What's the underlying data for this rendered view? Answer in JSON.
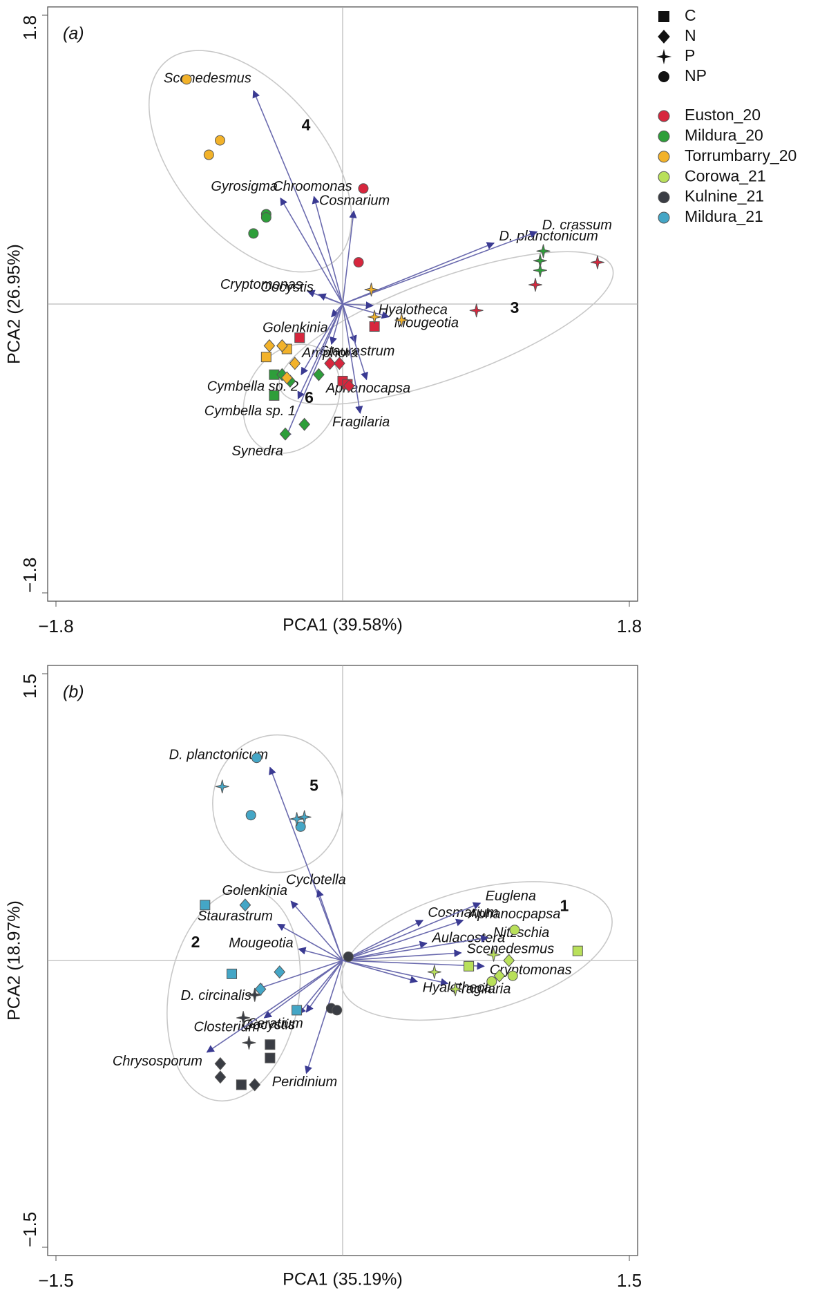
{
  "legend": {
    "markers": [
      {
        "name": "C",
        "shape": "square"
      },
      {
        "name": "N",
        "shape": "diamond"
      },
      {
        "name": "P",
        "shape": "star"
      },
      {
        "name": "NP",
        "shape": "circle"
      }
    ],
    "sites": [
      {
        "name": "Euston_20",
        "color": "#d7263d"
      },
      {
        "name": "Mildura_20",
        "color": "#2e9e3a"
      },
      {
        "name": "Torrumbarry_20",
        "color": "#f2b22a"
      },
      {
        "name": "Corowa_21",
        "color": "#b9e05a"
      },
      {
        "name": "Kulnine_21",
        "color": "#3a3d44"
      },
      {
        "name": "Mildura_21",
        "color": "#44a6c6"
      }
    ]
  },
  "chart_data": [
    {
      "type": "biplot",
      "panel": "(a)",
      "x_label": "PCA1 (39.58%)",
      "y_label": "PCA2 (26.95%)",
      "xlim": [
        -1.8,
        1.8
      ],
      "ylim": [
        -1.8,
        1.8
      ],
      "xticks": [
        {
          "value": -1.8,
          "label": "−1.8"
        },
        1.8
      ],
      "yticks": [
        {
          "value": -1.8,
          "label": "−1.8"
        },
        1.8
      ],
      "series": [
        {
          "name": "Euston_20",
          "color": "#d7263d",
          "points": [
            {
              "shape": "circle",
              "x": 0.13,
              "y": 0.72
            },
            {
              "shape": "circle",
              "x": 0.1,
              "y": 0.26
            },
            {
              "shape": "star",
              "x": 1.21,
              "y": 0.12
            },
            {
              "shape": "star",
              "x": 1.6,
              "y": 0.26
            },
            {
              "shape": "star",
              "x": 0.84,
              "y": -0.04
            },
            {
              "shape": "square",
              "x": -0.27,
              "y": -0.21
            },
            {
              "shape": "square",
              "x": 0.2,
              "y": -0.14
            },
            {
              "shape": "square",
              "x": 0,
              "y": -0.48
            },
            {
              "shape": "square",
              "x": 0.03,
              "y": -0.5
            },
            {
              "shape": "diamond",
              "x": -0.08,
              "y": -0.37
            },
            {
              "shape": "diamond",
              "x": -0.02,
              "y": -0.37
            },
            {
              "shape": "diamond",
              "x": 0.04,
              "y": -0.51
            }
          ]
        },
        {
          "name": "Mildura_20",
          "color": "#2e9e3a",
          "points": [
            {
              "shape": "circle",
              "x": -0.48,
              "y": 0.56
            },
            {
              "shape": "circle",
              "x": -0.48,
              "y": 0.54
            },
            {
              "shape": "circle",
              "x": -0.56,
              "y": 0.44
            },
            {
              "shape": "star",
              "x": 1.26,
              "y": 0.33
            },
            {
              "shape": "star",
              "x": 1.24,
              "y": 0.27
            },
            {
              "shape": "star",
              "x": 1.24,
              "y": 0.21
            },
            {
              "shape": "square",
              "x": -0.43,
              "y": -0.44
            },
            {
              "shape": "square",
              "x": -0.43,
              "y": -0.57
            },
            {
              "shape": "diamond",
              "x": -0.38,
              "y": -0.44
            },
            {
              "shape": "diamond",
              "x": -0.33,
              "y": -0.48
            },
            {
              "shape": "diamond",
              "x": -0.15,
              "y": -0.44
            },
            {
              "shape": "diamond",
              "x": -0.24,
              "y": -0.75
            },
            {
              "shape": "diamond",
              "x": -0.36,
              "y": -0.81
            }
          ]
        },
        {
          "name": "Torrumbarry_20",
          "color": "#f2b22a",
          "points": [
            {
              "shape": "circle",
              "x": -0.98,
              "y": 1.4
            },
            {
              "shape": "circle",
              "x": -0.77,
              "y": 1.02
            },
            {
              "shape": "circle",
              "x": -0.84,
              "y": 0.93
            },
            {
              "shape": "star",
              "x": 0.18,
              "y": 0.09
            },
            {
              "shape": "star",
              "x": 0.2,
              "y": -0.08
            },
            {
              "shape": "star",
              "x": 0.37,
              "y": -0.1
            },
            {
              "shape": "square",
              "x": -0.48,
              "y": -0.33
            },
            {
              "shape": "square",
              "x": -0.35,
              "y": -0.28
            },
            {
              "shape": "diamond",
              "x": -0.46,
              "y": -0.26
            },
            {
              "shape": "diamond",
              "x": -0.38,
              "y": -0.26
            },
            {
              "shape": "diamond",
              "x": -0.3,
              "y": -0.37
            },
            {
              "shape": "diamond",
              "x": -0.35,
              "y": -0.46
            }
          ]
        }
      ],
      "arrows": [
        {
          "name": "Scenedesmus",
          "x": -0.56,
          "y": 1.33
        },
        {
          "name": "Chroomonas",
          "x": -0.18,
          "y": 0.67
        },
        {
          "name": "Gyrosigma",
          "x": -0.39,
          "y": 0.66
        },
        {
          "name": "Cosmarium",
          "x": 0.07,
          "y": 0.58
        },
        {
          "name": "D. planctonicum",
          "x": 0.95,
          "y": 0.38
        },
        {
          "name": "D. crassum",
          "x": 1.22,
          "y": 0.45
        },
        {
          "name": "Cryptomonas",
          "x": -0.22,
          "y": 0.08
        },
        {
          "name": "Oocystis",
          "x": -0.15,
          "y": 0.06
        },
        {
          "name": "Hyalotheca",
          "x": 0.19,
          "y": -0.01
        },
        {
          "name": "Mougeotia",
          "x": 0.29,
          "y": -0.08
        },
        {
          "name": "Golenkinia",
          "x": -0.07,
          "y": -0.08
        },
        {
          "name": "Amphora",
          "x": -0.07,
          "y": -0.25
        },
        {
          "name": "Staurastrum",
          "x": 0.08,
          "y": -0.24
        },
        {
          "name": "Aphanocapsa",
          "x": 0.15,
          "y": -0.47
        },
        {
          "name": "Fragilaria",
          "x": 0.11,
          "y": -0.68
        },
        {
          "name": "Cymbella sp. 2",
          "x": -0.26,
          "y": -0.44
        },
        {
          "name": "Cymbella sp. 1",
          "x": -0.28,
          "y": -0.59
        },
        {
          "name": "Synedra",
          "x": -0.36,
          "y": -0.84
        }
      ],
      "annotations": [
        {
          "text": "4",
          "x": -0.23,
          "y": 1.11
        },
        {
          "text": "3",
          "x": 1.08,
          "y": -0.03
        },
        {
          "text": "6",
          "x": -0.21,
          "y": -0.59
        }
      ],
      "ellipses": [
        {
          "cx": -0.58,
          "cy": 0.89,
          "rx": 0.82,
          "ry": 0.46,
          "angle": -50
        },
        {
          "cx": 0.65,
          "cy": -0.15,
          "rx": 1.11,
          "ry": 0.31,
          "angle": 20
        },
        {
          "cx": -0.32,
          "cy": -0.59,
          "rx": 0.36,
          "ry": 0.28,
          "angle": 60
        }
      ]
    },
    {
      "type": "biplot",
      "panel": "(b)",
      "x_label": "PCA1 (35.19%)",
      "y_label": "PCA2 (18.97%)",
      "xlim": [
        -1.5,
        1.5
      ],
      "ylim": [
        -1.5,
        1.5
      ],
      "xticks": [
        {
          "value": -1.5,
          "label": "−1.5"
        },
        1.5
      ],
      "yticks": [
        {
          "value": -1.5,
          "label": "−1.5"
        },
        1.5
      ],
      "series": [
        {
          "name": "Corowa_21",
          "color": "#b9e05a",
          "points": [
            {
              "shape": "square",
              "x": 1.23,
              "y": 0.05
            },
            {
              "shape": "square",
              "x": 0.66,
              "y": -0.03
            },
            {
              "shape": "circle",
              "x": 0.9,
              "y": 0.16
            },
            {
              "shape": "circle",
              "x": 0.89,
              "y": -0.08
            },
            {
              "shape": "circle",
              "x": 0.78,
              "y": -0.11
            },
            {
              "shape": "star",
              "x": 0.48,
              "y": -0.06
            },
            {
              "shape": "star",
              "x": 0.59,
              "y": -0.15
            },
            {
              "shape": "star",
              "x": 0.79,
              "y": 0.03
            },
            {
              "shape": "diamond",
              "x": 0.82,
              "y": -0.08
            },
            {
              "shape": "diamond",
              "x": 0.87,
              "y": 0
            }
          ]
        },
        {
          "name": "Kulnine_21",
          "color": "#3a3d44",
          "points": [
            {
              "shape": "circle",
              "x": 0.03,
              "y": 0.02
            },
            {
              "shape": "circle",
              "x": -0.06,
              "y": -0.25
            },
            {
              "shape": "circle",
              "x": -0.03,
              "y": -0.26
            },
            {
              "shape": "star",
              "x": -0.46,
              "y": -0.18
            },
            {
              "shape": "star",
              "x": -0.52,
              "y": -0.3
            },
            {
              "shape": "star",
              "x": -0.49,
              "y": -0.43
            },
            {
              "shape": "square",
              "x": -0.38,
              "y": -0.44
            },
            {
              "shape": "square",
              "x": -0.38,
              "y": -0.51
            },
            {
              "shape": "square",
              "x": -0.53,
              "y": -0.65
            },
            {
              "shape": "diamond",
              "x": -0.64,
              "y": -0.54
            },
            {
              "shape": "diamond",
              "x": -0.64,
              "y": -0.61
            },
            {
              "shape": "diamond",
              "x": -0.46,
              "y": -0.65
            }
          ]
        },
        {
          "name": "Mildura_21",
          "color": "#44a6c6",
          "points": [
            {
              "shape": "circle",
              "x": -0.45,
              "y": 1.06
            },
            {
              "shape": "circle",
              "x": -0.48,
              "y": 0.76
            },
            {
              "shape": "circle",
              "x": -0.22,
              "y": 0.7
            },
            {
              "shape": "star",
              "x": -0.63,
              "y": 0.91
            },
            {
              "shape": "star",
              "x": -0.24,
              "y": 0.74
            },
            {
              "shape": "star",
              "x": -0.2,
              "y": 0.75
            },
            {
              "shape": "square",
              "x": -0.72,
              "y": 0.29
            },
            {
              "shape": "square",
              "x": -0.58,
              "y": -0.07
            },
            {
              "shape": "square",
              "x": -0.24,
              "y": -0.26
            },
            {
              "shape": "diamond",
              "x": -0.51,
              "y": 0.29
            },
            {
              "shape": "diamond",
              "x": -0.33,
              "y": -0.06
            },
            {
              "shape": "diamond",
              "x": -0.43,
              "y": -0.15
            }
          ]
        }
      ],
      "arrows": [
        {
          "name": "D. planctonicum",
          "x": -0.38,
          "y": 1.01
        },
        {
          "name": "Cyclotella",
          "x": -0.13,
          "y": 0.37
        },
        {
          "name": "Golenkinia",
          "x": -0.27,
          "y": 0.31
        },
        {
          "name": "Staurastrum",
          "x": -0.34,
          "y": 0.19
        },
        {
          "name": "Mougeotia",
          "x": -0.23,
          "y": 0.06
        },
        {
          "name": "Cosmarium",
          "x": 0.42,
          "y": 0.21
        },
        {
          "name": "Euglena",
          "x": 0.72,
          "y": 0.3
        },
        {
          "name": "Aphanocpapsa",
          "x": 0.63,
          "y": 0.21
        },
        {
          "name": "Aulacostera",
          "x": 0.44,
          "y": 0.09
        },
        {
          "name": "Nitzschia",
          "x": 0.76,
          "y": 0.12
        },
        {
          "name": "Scenedesmus",
          "x": 0.62,
          "y": 0.04
        },
        {
          "name": "Cryptomonas",
          "x": 0.74,
          "y": -0.03
        },
        {
          "name": "Fragilaria",
          "x": 0.55,
          "y": -0.12
        },
        {
          "name": "Hyalotheca",
          "x": 0.39,
          "y": -0.11
        },
        {
          "name": "D. circinalis",
          "x": -0.45,
          "y": -0.15
        },
        {
          "name": "Closterium",
          "x": -0.41,
          "y": -0.3
        },
        {
          "name": "Ceratium",
          "x": -0.19,
          "y": -0.27
        },
        {
          "name": "Oocystis",
          "x": -0.23,
          "y": -0.28
        },
        {
          "name": "Chrysosporum",
          "x": -0.71,
          "y": -0.48
        },
        {
          "name": "Peridinium",
          "x": -0.19,
          "y": -0.59
        }
      ],
      "annotations": [
        {
          "text": "5",
          "x": -0.15,
          "y": 0.91
        },
        {
          "text": "2",
          "x": -0.77,
          "y": 0.09
        },
        {
          "text": "1",
          "x": 1.16,
          "y": 0.28
        }
      ],
      "ellipses": [
        {
          "cx": -0.34,
          "cy": 0.82,
          "rx": 0.34,
          "ry": 0.36,
          "angle": 0
        },
        {
          "cx": -0.57,
          "cy": -0.18,
          "rx": 0.56,
          "ry": 0.34,
          "angle": 80
        },
        {
          "cx": 0.7,
          "cy": 0.05,
          "rx": 0.73,
          "ry": 0.32,
          "angle": 15
        }
      ]
    }
  ]
}
